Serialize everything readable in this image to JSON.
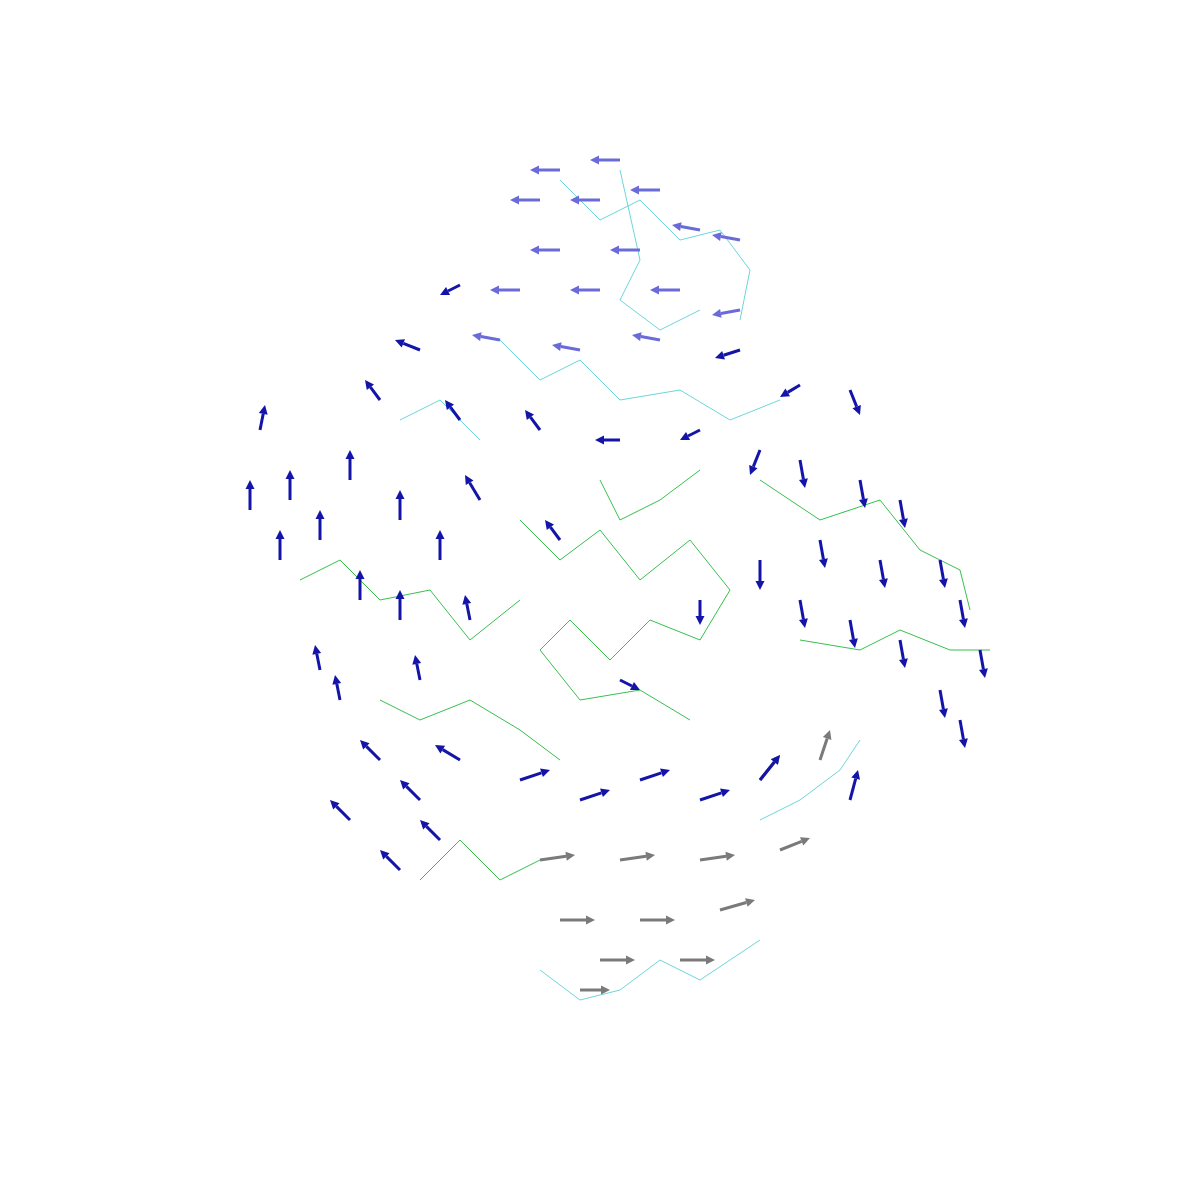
{
  "chart_data": {
    "type": "quiver",
    "tick_labels": false,
    "grid": false,
    "xlim": [
      0,
      1200
    ],
    "ylim": [
      0,
      1200
    ],
    "series": [
      {
        "type": "line",
        "color": "#22b83a",
        "x": [
          520,
          560,
          600,
          640,
          690,
          730,
          700,
          650,
          610,
          570,
          540,
          580,
          640,
          690,
          null,
          600,
          620,
          660,
          700,
          null,
          760,
          820,
          880,
          920,
          960,
          970,
          null,
          800,
          860,
          900,
          950,
          990,
          null,
          300,
          340,
          380,
          430,
          470,
          520,
          null,
          380,
          420,
          470,
          520,
          560,
          null,
          420,
          460,
          500,
          540
        ],
        "y": [
          680,
          640,
          670,
          620,
          660,
          610,
          560,
          580,
          540,
          580,
          550,
          500,
          510,
          480,
          null,
          720,
          680,
          700,
          730,
          null,
          720,
          680,
          700,
          650,
          630,
          590,
          null,
          560,
          550,
          570,
          550,
          550,
          null,
          620,
          640,
          600,
          610,
          560,
          600,
          null,
          500,
          480,
          500,
          470,
          440,
          null,
          320,
          360,
          320,
          340
        ]
      },
      {
        "type": "line",
        "color": "#5cd0d8",
        "x": [
          560,
          600,
          640,
          680,
          720,
          750,
          740,
          null,
          620,
          640,
          620,
          660,
          700,
          null,
          500,
          540,
          580,
          620,
          680,
          730,
          780,
          null,
          540,
          580,
          620,
          660,
          700,
          760,
          null,
          760,
          800,
          840,
          860,
          null,
          400,
          440,
          480
        ],
        "y": [
          1020,
          980,
          1000,
          960,
          970,
          930,
          880,
          null,
          1030,
          940,
          900,
          870,
          890,
          null,
          860,
          820,
          840,
          800,
          810,
          780,
          800,
          null,
          230,
          200,
          210,
          240,
          220,
          260,
          null,
          380,
          400,
          430,
          460,
          null,
          780,
          800,
          760
        ]
      },
      {
        "type": "quiver",
        "color": "#7a7a7a",
        "x": [
          540,
          620,
          700,
          780,
          560,
          640,
          720,
          600,
          680,
          580,
          760,
          820
        ],
        "y": [
          340,
          340,
          340,
          350,
          280,
          280,
          290,
          240,
          240,
          210,
          420,
          440
        ],
        "u": [
          35,
          35,
          35,
          30,
          35,
          35,
          35,
          35,
          35,
          30,
          20,
          10
        ],
        "v": [
          5,
          5,
          5,
          12,
          0,
          0,
          10,
          0,
          0,
          0,
          25,
          30
        ]
      },
      {
        "type": "quiver",
        "color": "#6a6ad8",
        "x": [
          560,
          620,
          540,
          600,
          660,
          700,
          740,
          560,
          640,
          520,
          600,
          680,
          740,
          500,
          580,
          660
        ],
        "y": [
          1030,
          1040,
          1000,
          1000,
          1010,
          970,
          960,
          950,
          950,
          910,
          910,
          910,
          890,
          860,
          850,
          860
        ],
        "u": [
          -30,
          -30,
          -30,
          -30,
          -30,
          -28,
          -28,
          -30,
          -30,
          -30,
          -30,
          -30,
          -28,
          -28,
          -28,
          -28
        ],
        "v": [
          0,
          0,
          0,
          0,
          0,
          5,
          5,
          0,
          0,
          0,
          0,
          0,
          -5,
          5,
          5,
          5
        ]
      },
      {
        "type": "quiver",
        "color": "#1414a8",
        "x": [
          460,
          420,
          740,
          800,
          850,
          380,
          460,
          540,
          620,
          700,
          760,
          260,
          250,
          290,
          320,
          280,
          350,
          400,
          440,
          360,
          400,
          320,
          340,
          420,
          470,
          480,
          800,
          860,
          900,
          820,
          880,
          940,
          960,
          980,
          850,
          900,
          940,
          960,
          800,
          760,
          350,
          380,
          420,
          400,
          460,
          440,
          520,
          580,
          640,
          700,
          760,
          850,
          560,
          700,
          620
        ],
        "y": [
          915,
          850,
          850,
          815,
          810,
          800,
          780,
          770,
          760,
          770,
          750,
          770,
          690,
          700,
          660,
          640,
          720,
          680,
          640,
          600,
          580,
          530,
          500,
          520,
          580,
          700,
          740,
          720,
          700,
          660,
          640,
          640,
          600,
          550,
          580,
          560,
          510,
          480,
          600,
          640,
          380,
          440,
          400,
          330,
          440,
          360,
          420,
          400,
          420,
          400,
          420,
          400,
          660,
          600,
          520
        ],
        "u": [
          -20,
          -25,
          -25,
          -20,
          10,
          -15,
          -15,
          -15,
          -25,
          -20,
          -10,
          5,
          0,
          0,
          0,
          0,
          0,
          0,
          0,
          0,
          0,
          -5,
          -5,
          -5,
          -5,
          -15,
          5,
          5,
          5,
          5,
          5,
          5,
          5,
          5,
          5,
          5,
          5,
          5,
          5,
          0,
          -20,
          -20,
          -20,
          -20,
          -25,
          -20,
          30,
          30,
          30,
          30,
          20,
          8,
          -15,
          0,
          20
        ],
        "v": [
          -10,
          10,
          -8,
          -12,
          -25,
          20,
          20,
          20,
          0,
          -10,
          -25,
          25,
          30,
          30,
          30,
          30,
          30,
          30,
          30,
          30,
          30,
          25,
          25,
          25,
          25,
          25,
          -28,
          -28,
          -28,
          -28,
          -28,
          -28,
          -28,
          -28,
          -28,
          -28,
          -28,
          -28,
          -28,
          -30,
          20,
          20,
          20,
          20,
          15,
          20,
          10,
          10,
          10,
          10,
          25,
          30,
          20,
          -25,
          -10
        ]
      }
    ]
  }
}
